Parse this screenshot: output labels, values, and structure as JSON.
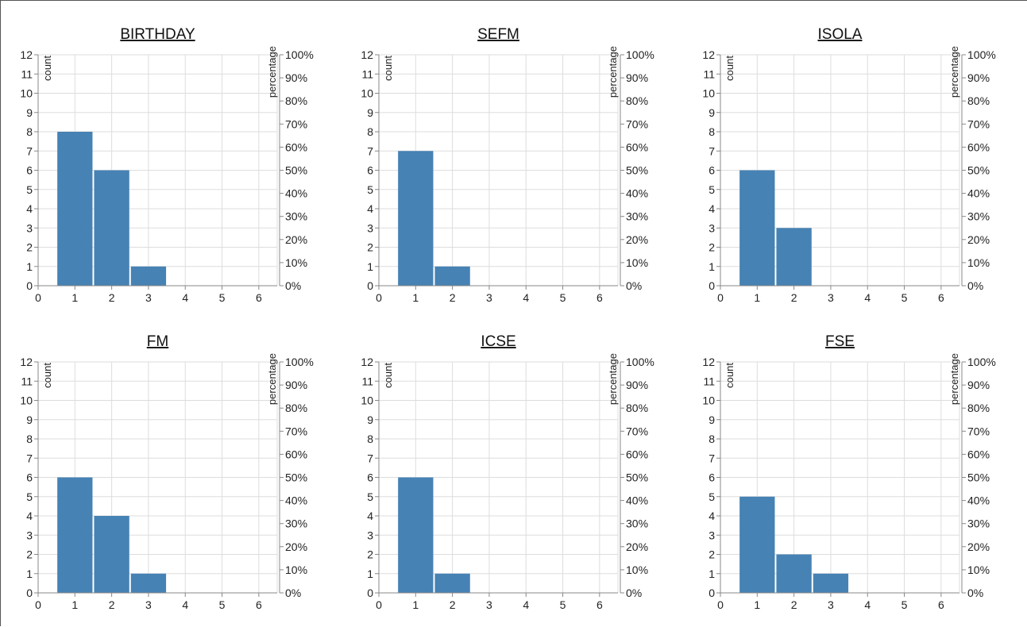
{
  "bar_color": "#4682b4",
  "grid_color": "#dddddd",
  "axis_color": "#888888",
  "chart_data": [
    {
      "type": "bar",
      "title": "BIRTHDAY",
      "categories": [
        1,
        2,
        3,
        4,
        5,
        6
      ],
      "values": [
        8,
        6,
        1,
        0,
        0,
        0
      ],
      "xlabel": "",
      "ylabel": "count",
      "y2label": "percentage",
      "ylim": [
        0,
        12
      ],
      "xlim": [
        0,
        6.5
      ],
      "x_ticks": [
        0,
        1,
        2,
        3,
        4,
        5,
        6
      ],
      "y_ticks": [
        0,
        1,
        2,
        3,
        4,
        5,
        6,
        7,
        8,
        9,
        10,
        11,
        12
      ],
      "y2_ticks": [
        "0%",
        "10%",
        "20%",
        "30%",
        "40%",
        "50%",
        "60%",
        "70%",
        "80%",
        "90%",
        "100%"
      ],
      "grid": true
    },
    {
      "type": "bar",
      "title": "SEFM",
      "categories": [
        1,
        2,
        3,
        4,
        5,
        6
      ],
      "values": [
        7,
        1,
        0,
        0,
        0,
        0
      ],
      "xlabel": "",
      "ylabel": "count",
      "y2label": "percentage",
      "ylim": [
        0,
        12
      ],
      "xlim": [
        0,
        6.5
      ],
      "x_ticks": [
        0,
        1,
        2,
        3,
        4,
        5,
        6
      ],
      "y_ticks": [
        0,
        1,
        2,
        3,
        4,
        5,
        6,
        7,
        8,
        9,
        10,
        11,
        12
      ],
      "y2_ticks": [
        "0%",
        "10%",
        "20%",
        "30%",
        "40%",
        "50%",
        "60%",
        "70%",
        "80%",
        "90%",
        "100%"
      ],
      "grid": true
    },
    {
      "type": "bar",
      "title": "ISOLA",
      "categories": [
        1,
        2,
        3,
        4,
        5,
        6
      ],
      "values": [
        6,
        3,
        0,
        0,
        0,
        0
      ],
      "xlabel": "",
      "ylabel": "count",
      "y2label": "percentage",
      "ylim": [
        0,
        12
      ],
      "xlim": [
        0,
        6.5
      ],
      "x_ticks": [
        0,
        1,
        2,
        3,
        4,
        5,
        6
      ],
      "y_ticks": [
        0,
        1,
        2,
        3,
        4,
        5,
        6,
        7,
        8,
        9,
        10,
        11,
        12
      ],
      "y2_ticks": [
        "0%",
        "10%",
        "20%",
        "30%",
        "40%",
        "50%",
        "60%",
        "70%",
        "80%",
        "90%",
        "100%"
      ],
      "grid": true
    },
    {
      "type": "bar",
      "title": "FM",
      "categories": [
        1,
        2,
        3,
        4,
        5,
        6
      ],
      "values": [
        6,
        4,
        1,
        0,
        0,
        0
      ],
      "xlabel": "",
      "ylabel": "count",
      "y2label": "percentage",
      "ylim": [
        0,
        12
      ],
      "xlim": [
        0,
        6.5
      ],
      "x_ticks": [
        0,
        1,
        2,
        3,
        4,
        5,
        6
      ],
      "y_ticks": [
        0,
        1,
        2,
        3,
        4,
        5,
        6,
        7,
        8,
        9,
        10,
        11,
        12
      ],
      "y2_ticks": [
        "0%",
        "10%",
        "20%",
        "30%",
        "40%",
        "50%",
        "60%",
        "70%",
        "80%",
        "90%",
        "100%"
      ],
      "grid": true
    },
    {
      "type": "bar",
      "title": "ICSE",
      "categories": [
        1,
        2,
        3,
        4,
        5,
        6
      ],
      "values": [
        6,
        1,
        0,
        0,
        0,
        0
      ],
      "xlabel": "",
      "ylabel": "count",
      "y2label": "percentage",
      "ylim": [
        0,
        12
      ],
      "xlim": [
        0,
        6.5
      ],
      "x_ticks": [
        0,
        1,
        2,
        3,
        4,
        5,
        6
      ],
      "y_ticks": [
        0,
        1,
        2,
        3,
        4,
        5,
        6,
        7,
        8,
        9,
        10,
        11,
        12
      ],
      "y2_ticks": [
        "0%",
        "10%",
        "20%",
        "30%",
        "40%",
        "50%",
        "60%",
        "70%",
        "80%",
        "90%",
        "100%"
      ],
      "grid": true
    },
    {
      "type": "bar",
      "title": "FSE",
      "categories": [
        1,
        2,
        3,
        4,
        5,
        6
      ],
      "values": [
        5,
        2,
        1,
        0,
        0,
        0
      ],
      "xlabel": "",
      "ylabel": "count",
      "y2label": "percentage",
      "ylim": [
        0,
        12
      ],
      "xlim": [
        0,
        6.5
      ],
      "x_ticks": [
        0,
        1,
        2,
        3,
        4,
        5,
        6
      ],
      "y_ticks": [
        0,
        1,
        2,
        3,
        4,
        5,
        6,
        7,
        8,
        9,
        10,
        11,
        12
      ],
      "y2_ticks": [
        "0%",
        "10%",
        "20%",
        "30%",
        "40%",
        "50%",
        "60%",
        "70%",
        "80%",
        "90%",
        "100%"
      ],
      "grid": true
    }
  ]
}
